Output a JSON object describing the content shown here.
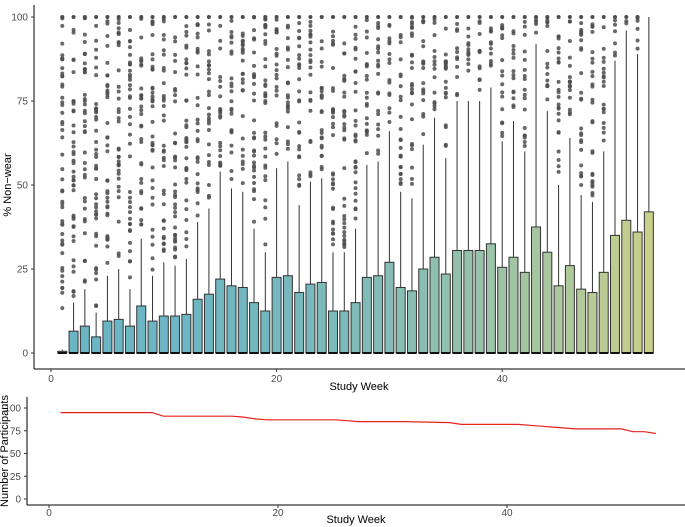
{
  "chart_data": [
    {
      "type": "box",
      "xlabel": "Study Week",
      "ylabel": "% Non−wear",
      "xlim": [
        0,
        55
      ],
      "ylim": [
        0,
        100
      ],
      "xticks": [
        0,
        20,
        40
      ],
      "yticks": [
        0,
        25,
        50,
        75,
        100
      ],
      "grid": false,
      "legend": "none",
      "colors": {
        "start": "#6bb5c5",
        "end": "#c9d08a",
        "outlier": "#4d4d4d"
      },
      "weeks": [
        1,
        2,
        3,
        4,
        5,
        6,
        7,
        8,
        9,
        10,
        11,
        12,
        13,
        14,
        15,
        16,
        17,
        18,
        19,
        20,
        21,
        22,
        23,
        24,
        25,
        26,
        27,
        28,
        29,
        30,
        31,
        32,
        33,
        34,
        35,
        36,
        37,
        38,
        39,
        40,
        41,
        42,
        43,
        44,
        45,
        46,
        47,
        48,
        49,
        50,
        51,
        52,
        53
      ],
      "q1": [
        0,
        0,
        0,
        0,
        0,
        0,
        0,
        0,
        0,
        0,
        0,
        0,
        0,
        0,
        0,
        0,
        0,
        0,
        0,
        0,
        0,
        0,
        0,
        0,
        0,
        0,
        0,
        0,
        0,
        0,
        0,
        0,
        0,
        0,
        0,
        0,
        0,
        0,
        0,
        0,
        0,
        0,
        0,
        0,
        0,
        0,
        0,
        0,
        0,
        0,
        0,
        0,
        0
      ],
      "median": [
        0,
        0,
        0,
        0,
        0,
        0,
        0,
        0,
        0,
        0,
        0,
        0,
        0,
        0,
        0,
        0,
        0,
        0,
        0,
        0,
        0,
        0,
        0,
        0,
        0,
        0,
        0,
        0,
        0,
        0,
        0,
        0,
        0,
        0,
        0,
        0,
        0,
        0,
        0,
        0,
        0,
        0,
        0,
        0,
        0,
        0,
        0,
        0,
        0,
        0,
        0,
        0,
        0
      ],
      "q3": [
        0.5,
        6.5,
        8,
        4.8,
        9.5,
        10,
        8,
        14,
        9.5,
        11,
        11,
        11.5,
        16,
        17.5,
        22,
        20,
        19.5,
        15,
        12.5,
        22.5,
        23,
        18,
        20.5,
        21,
        12.5,
        12.5,
        15,
        22.5,
        23,
        27,
        19.5,
        18.5,
        25,
        28.5,
        23.5,
        30.5,
        30.5,
        30.5,
        32.5,
        25.5,
        28.5,
        24,
        37.5,
        30,
        20,
        26,
        19,
        18,
        24,
        35,
        39.5,
        36,
        42
      ],
      "upper_whisker": [
        1,
        15,
        19,
        12,
        23,
        25,
        19,
        34,
        23,
        27,
        26,
        28,
        39,
        43,
        54,
        49,
        48,
        37,
        30,
        55,
        57,
        44,
        51,
        52,
        30,
        30,
        37,
        56,
        57,
        66,
        48,
        46,
        62,
        70,
        58,
        75,
        75,
        75,
        79,
        63,
        69,
        60,
        92,
        72,
        50,
        64,
        47,
        45,
        60,
        87,
        96,
        89,
        100
      ]
    },
    {
      "type": "line",
      "xlabel": "Study Week",
      "ylabel": "Number of Participants",
      "xlim": [
        0,
        55
      ],
      "ylim": [
        0,
        100
      ],
      "xticks": [
        0,
        20,
        40
      ],
      "yticks": [
        0,
        25,
        50,
        75,
        100
      ],
      "grid": false,
      "legend": "none",
      "color": "#e8221f",
      "x": [
        1,
        9,
        10,
        16,
        17,
        18,
        19,
        25,
        26,
        27,
        31,
        35,
        36,
        41,
        42,
        43,
        44,
        45,
        46,
        47,
        48,
        49,
        50,
        51,
        52,
        53
      ],
      "y": [
        95,
        95,
        91,
        91,
        90,
        88,
        87,
        87,
        86,
        85,
        85,
        84,
        82,
        82,
        81,
        80,
        79,
        78,
        77,
        77,
        77,
        77,
        77,
        74,
        74,
        72
      ]
    }
  ]
}
